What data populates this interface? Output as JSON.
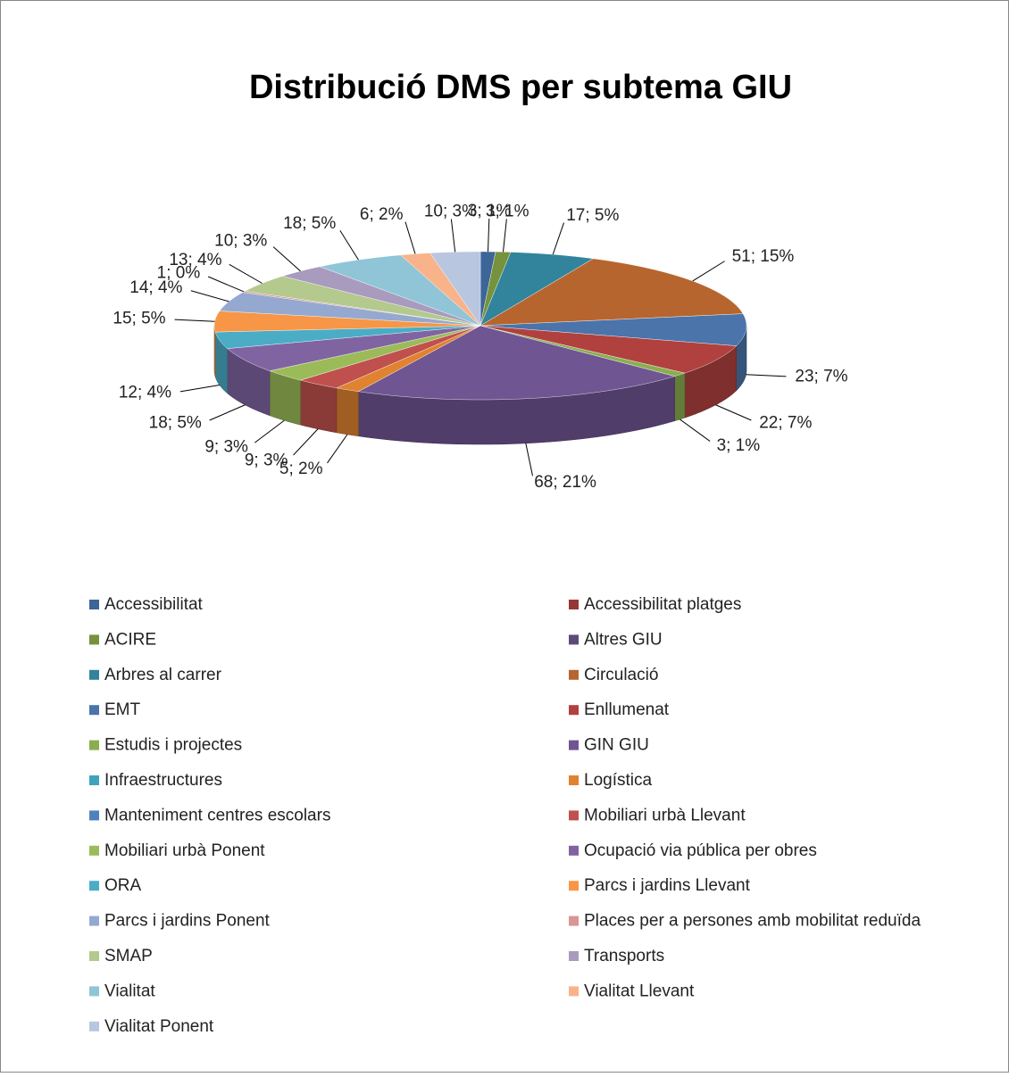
{
  "chart_data": {
    "type": "pie3d",
    "title": "Distribució  DMS per subtema GIU",
    "categories": [
      "Accessibilitat",
      "Accessibilitat platges",
      "ACIRE",
      "Altres GIU",
      "Arbres al carrer",
      "Circulació",
      "EMT",
      "Enllumenat",
      "Estudis i projectes",
      "GIN GIU",
      "Infraestructures",
      "Logística",
      "Manteniment centres escolars",
      "Mobiliari urbà Llevant",
      "Mobiliari urbà Ponent",
      "Ocupació via pública per obres",
      "ORA",
      "Parcs i jardins Llevant",
      "Parcs i jardins Ponent",
      "Places per a persones amb mobilitat reduïda",
      "SMAP",
      "Transports",
      "Vialitat",
      "Vialitat Llevant",
      "Vialitat Ponent"
    ],
    "values": [
      3,
      0,
      3,
      0,
      17,
      51,
      23,
      22,
      3,
      68,
      0,
      5,
      0,
      9,
      9,
      18,
      12,
      15,
      14,
      1,
      13,
      10,
      18,
      6,
      10
    ],
    "value_labels": [
      "3; 1%",
      null,
      "3; 1%",
      null,
      "17; 5%",
      "51; 15%",
      "23; 7%",
      "22; 7%",
      "3; 1%",
      "68; 21%",
      null,
      "5; 2%",
      null,
      "9; 3%",
      "9; 3%",
      "18; 5%",
      "12; 4%",
      "15; 5%",
      "14; 4%",
      "1; 0%",
      "13; 4%",
      "10; 3%",
      "18; 5%",
      "6; 2%",
      "10; 3%"
    ],
    "colors": [
      "#3c6598",
      "#953735",
      "#76923c",
      "#5f497a",
      "#31849b",
      "#b7652e",
      "#4a74aa",
      "#b0413e",
      "#8aae4f",
      "#6f5592",
      "#3fa3bd",
      "#e0822f",
      "#4f81bd",
      "#c0504d",
      "#9bbb59",
      "#8064a2",
      "#4bacc6",
      "#f79646",
      "#95a9d0",
      "#d99694",
      "#b3c98e",
      "#a99bbd",
      "#8fc5d6",
      "#f9b38a",
      "#b8c6e0"
    ],
    "legend": "bottom"
  }
}
